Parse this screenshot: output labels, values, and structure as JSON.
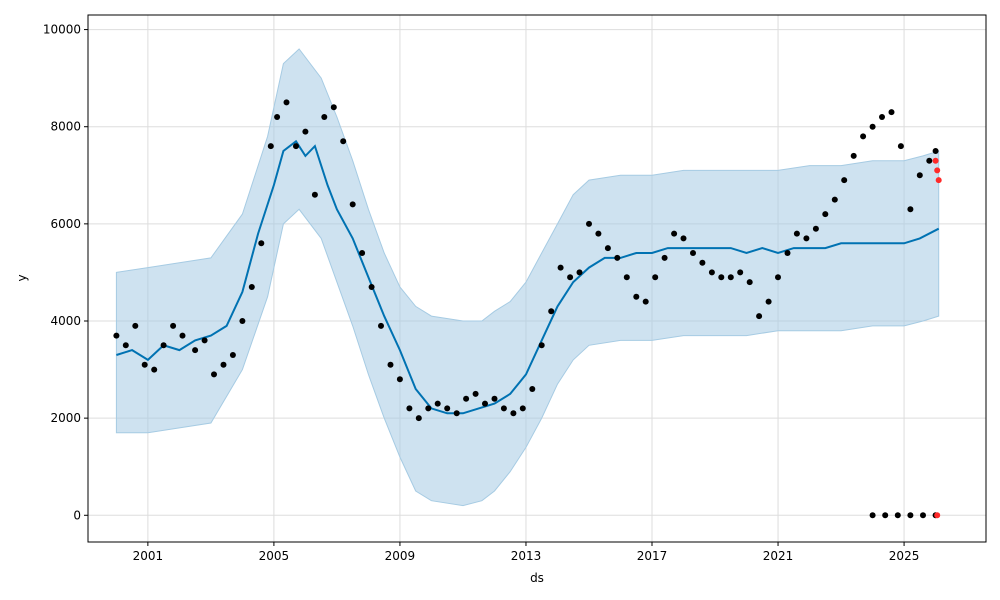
{
  "chart_data": {
    "type": "line",
    "xlabel": "ds",
    "ylabel": "y",
    "grid": true,
    "x_ticks": [
      "2001",
      "2005",
      "2009",
      "2013",
      "2017",
      "2021",
      "2025"
    ],
    "y_ticks": [
      "0",
      "2000",
      "4000",
      "6000",
      "8000",
      "10000"
    ],
    "xlim": [
      1999.1,
      2027.6
    ],
    "ylim": [
      -550,
      10300
    ],
    "colors": {
      "forecast": "#0072b2",
      "interval": "#a6cbe3",
      "observed": "#000000",
      "highlight": "#ff2a2a"
    },
    "series": [
      {
        "role": "uncertainty-band",
        "x": [
          2000.0,
          2001.0,
          2002.0,
          2003.0,
          2004.0,
          2004.8,
          2005.3,
          2005.8,
          2006.5,
          2007.0,
          2007.5,
          2008.0,
          2008.5,
          2009.0,
          2009.5,
          2010.0,
          2011.0,
          2011.6,
          2012.0,
          2012.5,
          2013.0,
          2013.5,
          2014.0,
          2014.5,
          2015.0,
          2016.0,
          2017.0,
          2018.0,
          2019.0,
          2020.0,
          2021.0,
          2022.0,
          2023.0,
          2024.0,
          2025.0,
          2025.6,
          2026.1
        ],
        "upper": [
          5000,
          5100,
          5200,
          5300,
          6200,
          7800,
          9300,
          9600,
          9000,
          8200,
          7300,
          6300,
          5400,
          4700,
          4300,
          4100,
          4000,
          4000,
          4200,
          4400,
          4800,
          5400,
          6000,
          6600,
          6900,
          7000,
          7000,
          7100,
          7100,
          7100,
          7100,
          7200,
          7200,
          7300,
          7300,
          7400,
          7500
        ],
        "lower": [
          1700,
          1700,
          1800,
          1900,
          3000,
          4500,
          6000,
          6300,
          5700,
          4800,
          3900,
          2900,
          2000,
          1200,
          500,
          300,
          200,
          300,
          500,
          900,
          1400,
          2000,
          2700,
          3200,
          3500,
          3600,
          3600,
          3700,
          3700,
          3700,
          3800,
          3800,
          3800,
          3900,
          3900,
          4000,
          4100
        ]
      },
      {
        "name": "yhat",
        "x": [
          2000.0,
          2000.5,
          2001.0,
          2001.5,
          2002.0,
          2002.5,
          2003.0,
          2003.5,
          2004.0,
          2004.5,
          2005.0,
          2005.3,
          2005.7,
          2006.0,
          2006.3,
          2006.7,
          2007.0,
          2007.5,
          2008.0,
          2008.5,
          2009.0,
          2009.5,
          2010.0,
          2010.5,
          2011.0,
          2011.5,
          2012.0,
          2012.5,
          2013.0,
          2013.5,
          2014.0,
          2014.5,
          2015.0,
          2015.5,
          2016.0,
          2016.5,
          2017.0,
          2017.5,
          2018.0,
          2018.5,
          2019.0,
          2019.5,
          2020.0,
          2020.5,
          2021.0,
          2021.5,
          2022.0,
          2022.5,
          2023.0,
          2023.5,
          2024.0,
          2024.5,
          2025.0,
          2025.5,
          2026.1
        ],
        "values": [
          3300,
          3400,
          3200,
          3500,
          3400,
          3600,
          3700,
          3900,
          4600,
          5800,
          6800,
          7500,
          7700,
          7400,
          7600,
          6800,
          6300,
          5700,
          4900,
          4100,
          3400,
          2600,
          2200,
          2100,
          2100,
          2200,
          2300,
          2500,
          2900,
          3600,
          4300,
          4800,
          5100,
          5300,
          5300,
          5400,
          5400,
          5500,
          5500,
          5500,
          5500,
          5500,
          5400,
          5500,
          5400,
          5500,
          5500,
          5500,
          5600,
          5600,
          5600,
          5600,
          5600,
          5700,
          5900
        ]
      },
      {
        "name": "observed",
        "x": [
          2000.0,
          2000.3,
          2000.6,
          2000.9,
          2001.2,
          2001.5,
          2001.8,
          2002.1,
          2002.5,
          2002.8,
          2003.1,
          2003.4,
          2003.7,
          2004.0,
          2004.3,
          2004.6,
          2004.9,
          2005.1,
          2005.4,
          2005.7,
          2006.0,
          2006.3,
          2006.6,
          2006.9,
          2007.2,
          2007.5,
          2007.8,
          2008.1,
          2008.4,
          2008.7,
          2009.0,
          2009.3,
          2009.6,
          2009.9,
          2010.2,
          2010.5,
          2010.8,
          2011.1,
          2011.4,
          2011.7,
          2012.0,
          2012.3,
          2012.6,
          2012.9,
          2013.2,
          2013.5,
          2013.8,
          2014.1,
          2014.4,
          2014.7,
          2015.0,
          2015.3,
          2015.6,
          2015.9,
          2016.2,
          2016.5,
          2016.8,
          2017.1,
          2017.4,
          2017.7,
          2018.0,
          2018.3,
          2018.6,
          2018.9,
          2019.2,
          2019.5,
          2019.8,
          2020.1,
          2020.4,
          2020.7,
          2021.0,
          2021.3,
          2021.6,
          2021.9,
          2022.2,
          2022.5,
          2022.8,
          2023.1,
          2023.4,
          2023.7,
          2024.0,
          2024.3,
          2024.6,
          2024.9,
          2025.2,
          2025.5,
          2025.8,
          2026.0
        ],
        "values": [
          3700,
          3500,
          3900,
          3100,
          3000,
          3500,
          3900,
          3700,
          3400,
          3600,
          2900,
          3100,
          3300,
          4000,
          4700,
          5600,
          7600,
          8200,
          8500,
          7600,
          7900,
          6600,
          8200,
          8400,
          7700,
          6400,
          5400,
          4700,
          3900,
          3100,
          2800,
          2200,
          2000,
          2200,
          2300,
          2200,
          2100,
          2400,
          2500,
          2300,
          2400,
          2200,
          2100,
          2200,
          2600,
          3500,
          4200,
          5100,
          4900,
          5000,
          6000,
          5800,
          5500,
          5300,
          4900,
          4500,
          4400,
          4900,
          5300,
          5800,
          5700,
          5400,
          5200,
          5000,
          4900,
          4900,
          5000,
          4800,
          4100,
          4400,
          4900,
          5400,
          5800,
          5700,
          5900,
          6200,
          6500,
          6900,
          7400,
          7800,
          8000,
          8200,
          8300,
          7600,
          6300,
          7000,
          7300,
          7500
        ]
      },
      {
        "name": "observed-zero",
        "x": [
          2024.0,
          2024.4,
          2024.8,
          2025.2,
          2025.6,
          2026.0
        ],
        "values": [
          0,
          0,
          0,
          0,
          0,
          0
        ]
      },
      {
        "name": "highlight",
        "x": [
          2026.0,
          2026.05,
          2026.1,
          2026.05
        ],
        "values": [
          7300,
          7100,
          6900,
          0
        ]
      }
    ]
  }
}
